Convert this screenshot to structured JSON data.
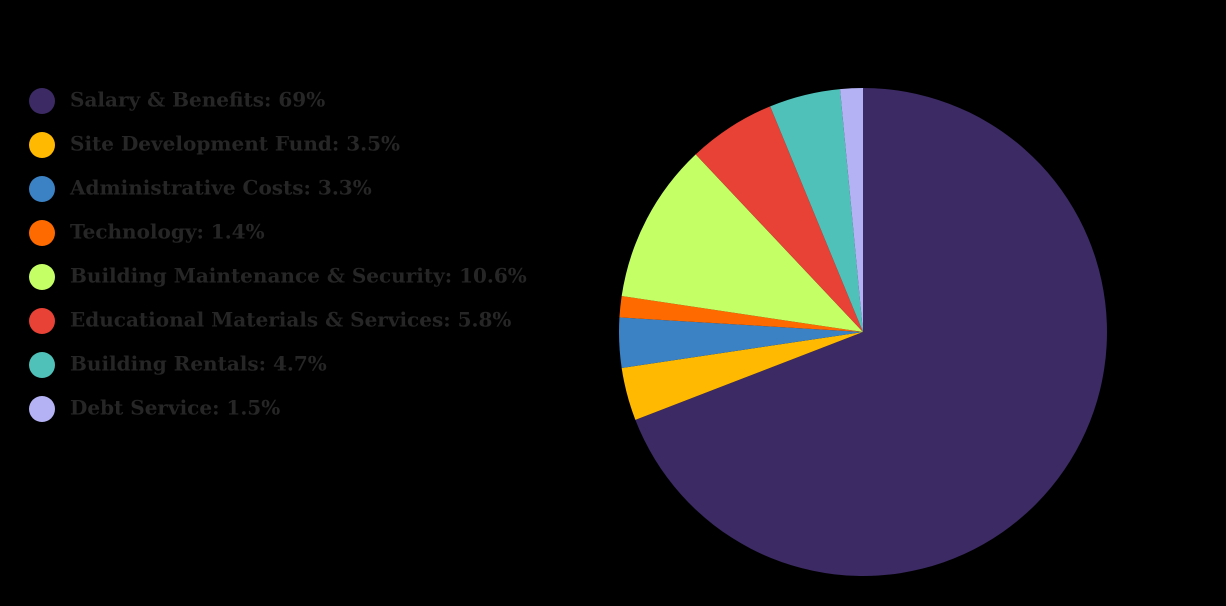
{
  "chart_data": {
    "type": "pie",
    "categories": [
      "Salary & Benefits: 69%",
      "Site Development Fund: 3.5%",
      "Administrative Costs: 3.3%",
      "Technology: 1.4%",
      "Building Maintenance & Security: 10.6%",
      "Educational Materials & Services: 5.8%",
      "Building Rentals: 4.7%",
      "Debt Service: 1.5%"
    ],
    "values": [
      69,
      3.5,
      3.3,
      1.4,
      10.6,
      5.8,
      4.7,
      1.5
    ],
    "colors": [
      "#3b2a63",
      "#ffb900",
      "#3b82c4",
      "#ff6a00",
      "#c4ff66",
      "#e84135",
      "#4fc1b9",
      "#b4b2f5"
    ],
    "legend": "left"
  }
}
